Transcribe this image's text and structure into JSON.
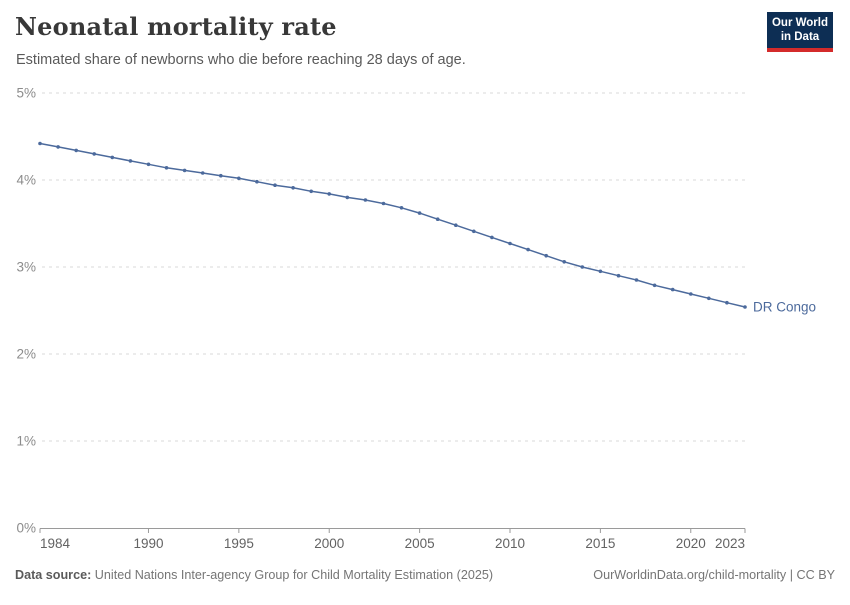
{
  "header": {
    "title": "Neonatal mortality rate",
    "subtitle": "Estimated share of newborns who die before reaching 28 days of age.",
    "logo_line1": "Our World",
    "logo_line2": "in Data"
  },
  "colors": {
    "series_blue": "#4c6a9c",
    "logo_navy": "#0d2e54",
    "logo_red": "#d42b2b",
    "gridline": "#d9d9d9",
    "axis": "#9a9a9a"
  },
  "chart_data": {
    "type": "line",
    "title": "Neonatal mortality rate",
    "subtitle": "Estimated share of newborns who die before reaching 28 days of age.",
    "xlabel": "",
    "ylabel": "",
    "xlim": [
      1984,
      2023
    ],
    "ylim": [
      0,
      5
    ],
    "grid": "horizontal-dashed",
    "legend_position": "end-of-line-label",
    "x_ticks": [
      1984,
      1990,
      1995,
      2000,
      2005,
      2010,
      2015,
      2020,
      2023
    ],
    "y_ticks": [
      {
        "value": 0,
        "label": "0%"
      },
      {
        "value": 1,
        "label": "1%"
      },
      {
        "value": 2,
        "label": "2%"
      },
      {
        "value": 3,
        "label": "3%"
      },
      {
        "value": 4,
        "label": "4%"
      },
      {
        "value": 5,
        "label": "5%"
      }
    ],
    "series": [
      {
        "name": "DR Congo",
        "color": "#4c6a9c",
        "x": [
          1984,
          1985,
          1986,
          1987,
          1988,
          1989,
          1990,
          1991,
          1992,
          1993,
          1994,
          1995,
          1996,
          1997,
          1998,
          1999,
          2000,
          2001,
          2002,
          2003,
          2004,
          2005,
          2006,
          2007,
          2008,
          2009,
          2010,
          2011,
          2012,
          2013,
          2014,
          2015,
          2016,
          2017,
          2018,
          2019,
          2020,
          2021,
          2022,
          2023
        ],
        "values": [
          4.42,
          4.38,
          4.34,
          4.3,
          4.26,
          4.22,
          4.18,
          4.14,
          4.11,
          4.08,
          4.05,
          4.02,
          3.98,
          3.94,
          3.91,
          3.87,
          3.84,
          3.8,
          3.77,
          3.73,
          3.68,
          3.62,
          3.55,
          3.48,
          3.41,
          3.34,
          3.27,
          3.2,
          3.13,
          3.06,
          3.0,
          2.95,
          2.9,
          2.85,
          2.79,
          2.74,
          2.69,
          2.64,
          2.59,
          2.54
        ]
      }
    ]
  },
  "footer": {
    "source_label": "Data source:",
    "source_text": "United Nations Inter-agency Group for Child Mortality Estimation (2025)",
    "link_text": "OurWorldinData.org/child-mortality | CC BY"
  }
}
